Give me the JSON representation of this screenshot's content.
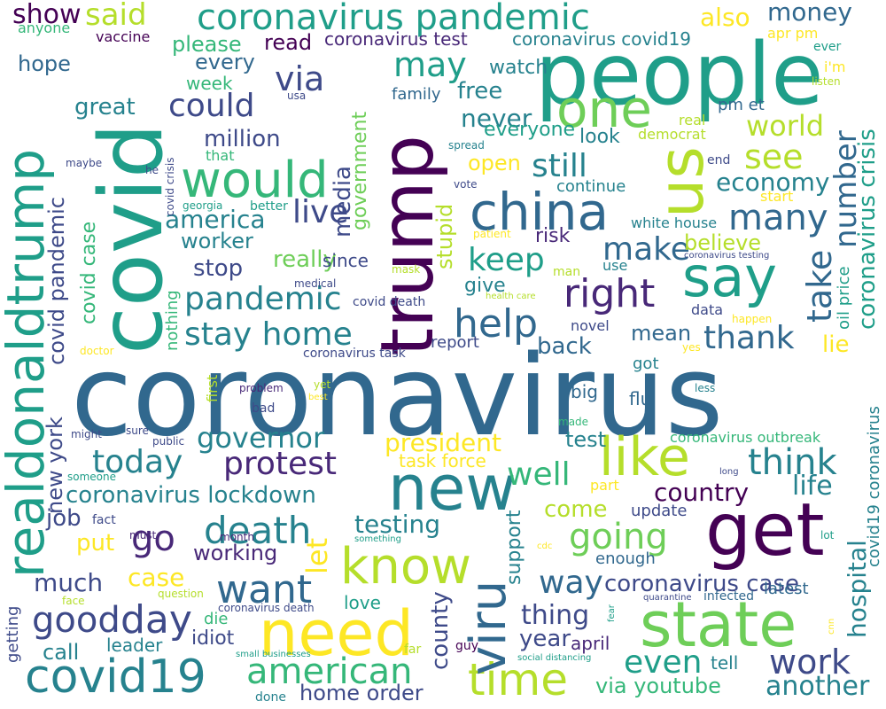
{
  "palette": [
    "#440154",
    "#482878",
    "#3e4a89",
    "#31688e",
    "#26828e",
    "#1f9e89",
    "#35b779",
    "#6ece58",
    "#b5de2b",
    "#fde725"
  ],
  "words": [
    {
      "text": "coronavirus",
      "color": "#31688e"
    },
    {
      "text": "covid",
      "color": "#1f9e89"
    },
    {
      "text": "trump",
      "color": "#440154"
    },
    {
      "text": "people",
      "color": "#1f9e89"
    },
    {
      "text": "realdonaldtrump",
      "color": "#1f9e89"
    },
    {
      "text": "new",
      "color": "#26828e"
    },
    {
      "text": "get",
      "color": "#440154"
    },
    {
      "text": "us",
      "color": "#b5de2b"
    },
    {
      "text": "need",
      "color": "#fde725"
    },
    {
      "text": "state",
      "color": "#6ece58"
    },
    {
      "text": "china",
      "color": "#31688e"
    },
    {
      "text": "say",
      "color": "#1f9e89"
    },
    {
      "text": "would",
      "color": "#35b779"
    },
    {
      "text": "covid19",
      "color": "#26828e"
    },
    {
      "text": "know",
      "color": "#b5de2b"
    },
    {
      "text": "like",
      "color": "#b5de2b"
    },
    {
      "text": "time",
      "color": "#b5de2b"
    },
    {
      "text": "viru",
      "color": "#31688e"
    },
    {
      "text": "coronavirus pandemic",
      "color": "#1f9e89"
    },
    {
      "text": "one",
      "color": "#6ece58"
    },
    {
      "text": "death",
      "color": "#26828e"
    },
    {
      "text": "right",
      "color": "#482878"
    },
    {
      "text": "want",
      "color": "#31688e"
    },
    {
      "text": "stay home",
      "color": "#26828e"
    },
    {
      "text": "american",
      "color": "#35b779"
    },
    {
      "text": "day",
      "color": "#3e4a89"
    },
    {
      "text": "help",
      "color": "#31688e"
    },
    {
      "text": "good",
      "color": "#3e4a89"
    },
    {
      "text": "many",
      "color": "#31688e"
    },
    {
      "text": "think",
      "color": "#26828e"
    },
    {
      "text": "going",
      "color": "#6ece58"
    },
    {
      "text": "make",
      "color": "#31688e"
    },
    {
      "text": "keep",
      "color": "#1f9e89"
    },
    {
      "text": "work",
      "color": "#3e4a89"
    },
    {
      "text": "pandemic",
      "color": "#26828e"
    },
    {
      "text": "protest",
      "color": "#482878"
    },
    {
      "text": "today",
      "color": "#26828e"
    },
    {
      "text": "thank",
      "color": "#31688e"
    },
    {
      "text": "way",
      "color": "#31688e"
    },
    {
      "text": "see",
      "color": "#b5de2b"
    },
    {
      "text": "could",
      "color": "#3e4a89"
    },
    {
      "text": "go",
      "color": "#482878"
    },
    {
      "text": "still",
      "color": "#26828e"
    },
    {
      "text": "well",
      "color": "#35b779"
    },
    {
      "text": "governor",
      "color": "#26828e"
    },
    {
      "text": "even",
      "color": "#1f9e89"
    },
    {
      "text": "may",
      "color": "#1f9e89"
    },
    {
      "text": "via",
      "color": "#3e4a89"
    },
    {
      "text": "take",
      "color": "#31688e"
    },
    {
      "text": "number",
      "color": "#31688e"
    },
    {
      "text": "live",
      "color": "#3e4a89"
    },
    {
      "text": "another",
      "color": "#26828e"
    },
    {
      "text": "coronavirus lockdown",
      "color": "#26828e"
    },
    {
      "text": "said",
      "color": "#b5de2b"
    },
    {
      "text": "money",
      "color": "#31688e"
    },
    {
      "text": "new york",
      "color": "#3e4a89"
    },
    {
      "text": "covid pandemic",
      "color": "#3e4a89"
    },
    {
      "text": "coronavirus crisis",
      "color": "#1f9e89"
    },
    {
      "text": "president",
      "color": "#fde725"
    },
    {
      "text": "country",
      "color": "#440154"
    },
    {
      "text": "world",
      "color": "#b5de2b"
    },
    {
      "text": "economy",
      "color": "#26828e"
    },
    {
      "text": "testing",
      "color": "#26828e"
    },
    {
      "text": "coronavirus case",
      "color": "#3e4a89"
    },
    {
      "text": "via youtube",
      "color": "#35b779"
    },
    {
      "text": "much",
      "color": "#3e4a89"
    },
    {
      "text": "thing",
      "color": "#3e4a89"
    },
    {
      "text": "hospital",
      "color": "#26828e"
    },
    {
      "text": "america",
      "color": "#26828e"
    },
    {
      "text": "life",
      "color": "#26828e"
    },
    {
      "text": "county",
      "color": "#3e4a89"
    },
    {
      "text": "home order",
      "color": "#3e4a89"
    },
    {
      "text": "media",
      "color": "#3e4a89"
    },
    {
      "text": "million",
      "color": "#3e4a89"
    },
    {
      "text": "case",
      "color": "#fde725"
    },
    {
      "text": "really",
      "color": "#6ece58"
    },
    {
      "text": "never",
      "color": "#26828e"
    },
    {
      "text": "let",
      "color": "#fde725"
    },
    {
      "text": "show",
      "color": "#440154"
    },
    {
      "text": "also",
      "color": "#fde725"
    },
    {
      "text": "believe",
      "color": "#b5de2b"
    },
    {
      "text": "stop",
      "color": "#3e4a89"
    },
    {
      "text": "come",
      "color": "#b5de2b"
    },
    {
      "text": "free",
      "color": "#26828e"
    },
    {
      "text": "government",
      "color": "#6ece58"
    },
    {
      "text": "year",
      "color": "#3e4a89"
    },
    {
      "text": "job",
      "color": "#3e4a89"
    },
    {
      "text": "put",
      "color": "#fde725"
    },
    {
      "text": "test",
      "color": "#26828e"
    },
    {
      "text": "back",
      "color": "#31688e"
    },
    {
      "text": "great",
      "color": "#26828e"
    },
    {
      "text": "open",
      "color": "#fde725"
    },
    {
      "text": "stupid",
      "color": "#b5de2b"
    },
    {
      "text": "worker",
      "color": "#26828e"
    },
    {
      "text": "call",
      "color": "#26828e"
    },
    {
      "text": "mean",
      "color": "#31688e"
    },
    {
      "text": "hope",
      "color": "#31688e"
    },
    {
      "text": "every",
      "color": "#31688e"
    },
    {
      "text": "read",
      "color": "#440154"
    },
    {
      "text": "watch",
      "color": "#26828e"
    },
    {
      "text": "please",
      "color": "#35b779"
    },
    {
      "text": "covid case",
      "color": "#35b779"
    },
    {
      "text": "working",
      "color": "#482878"
    },
    {
      "text": "risk",
      "color": "#482878"
    },
    {
      "text": "give",
      "color": "#26828e"
    },
    {
      "text": "look",
      "color": "#26828e"
    },
    {
      "text": "everyone",
      "color": "#1f9e89"
    },
    {
      "text": "support",
      "color": "#26828e"
    },
    {
      "text": "idiot",
      "color": "#3e4a89"
    },
    {
      "text": "lie",
      "color": "#fde725"
    },
    {
      "text": "coronavirus test",
      "color": "#482878"
    },
    {
      "text": "coronavirus covid19",
      "color": "#26828e"
    },
    {
      "text": "covid19 coronavirus",
      "color": "#26828e"
    },
    {
      "text": "task force",
      "color": "#fde725"
    },
    {
      "text": "since",
      "color": "#3e4a89"
    },
    {
      "text": "week",
      "color": "#35b779"
    },
    {
      "text": "continue",
      "color": "#26828e"
    },
    {
      "text": "april",
      "color": "#482878"
    },
    {
      "text": "family",
      "color": "#31688e"
    },
    {
      "text": "tell",
      "color": "#26828e"
    },
    {
      "text": "leader",
      "color": "#26828e"
    },
    {
      "text": "love",
      "color": "#1f9e89"
    },
    {
      "text": "update",
      "color": "#3e4a89"
    },
    {
      "text": "enough",
      "color": "#31688e"
    },
    {
      "text": "latest",
      "color": "#31688e"
    },
    {
      "text": "oil price",
      "color": "#1f9e89"
    },
    {
      "text": "vaccine",
      "color": "#440154"
    },
    {
      "text": "nothing",
      "color": "#35b779"
    },
    {
      "text": "getting",
      "color": "#3e4a89"
    },
    {
      "text": "die",
      "color": "#35b779"
    },
    {
      "text": "big",
      "color": "#31688e"
    },
    {
      "text": "flu",
      "color": "#31688e"
    },
    {
      "text": "report",
      "color": "#3e4a89"
    },
    {
      "text": "data",
      "color": "#3e4a89"
    },
    {
      "text": "got",
      "color": "#26828e"
    },
    {
      "text": "pm et",
      "color": "#31688e"
    },
    {
      "text": "democrat",
      "color": "#b5de2b"
    },
    {
      "text": "real",
      "color": "#b5de2b"
    },
    {
      "text": "apr pm",
      "color": "#fde725"
    },
    {
      "text": "i'm",
      "color": "#fde725"
    },
    {
      "text": "coronavirus outbreak",
      "color": "#35b779"
    },
    {
      "text": "white house",
      "color": "#26828e"
    },
    {
      "text": "use",
      "color": "#26828e"
    },
    {
      "text": "novel",
      "color": "#3e4a89"
    },
    {
      "text": "first",
      "color": "#b5de2b"
    },
    {
      "text": "part",
      "color": "#fde725"
    },
    {
      "text": "start",
      "color": "#fde725"
    },
    {
      "text": "end",
      "color": "#3e4a89"
    },
    {
      "text": "ever",
      "color": "#1f9e89"
    },
    {
      "text": "anyone",
      "color": "#35b779"
    },
    {
      "text": "that",
      "color": "#35b779"
    },
    {
      "text": "usa",
      "color": "#3e4a89"
    },
    {
      "text": "maybe",
      "color": "#3e4a89"
    },
    {
      "text": "he",
      "color": "#3e4a89"
    },
    {
      "text": "covid crisis",
      "color": "#3e4a89"
    },
    {
      "text": "georgia",
      "color": "#1f9e89"
    },
    {
      "text": "better",
      "color": "#1f9e89"
    },
    {
      "text": "spread",
      "color": "#26828e"
    },
    {
      "text": "vote",
      "color": "#3e4a89"
    },
    {
      "text": "patient",
      "color": "#fde725"
    },
    {
      "text": "mask",
      "color": "#b5de2b"
    },
    {
      "text": "man",
      "color": "#b5de2b"
    },
    {
      "text": "medical",
      "color": "#3e4a89"
    },
    {
      "text": "health care",
      "color": "#b5de2b"
    },
    {
      "text": "covid death",
      "color": "#3e4a89"
    },
    {
      "text": "coronavirus task",
      "color": "#3e4a89"
    },
    {
      "text": "doctor",
      "color": "#fde725"
    },
    {
      "text": "problem",
      "color": "#482878"
    },
    {
      "text": "yet",
      "color": "#b5de2b"
    },
    {
      "text": "best",
      "color": "#fde725"
    },
    {
      "text": "bad",
      "color": "#3e4a89"
    },
    {
      "text": "might",
      "color": "#3e4a89"
    },
    {
      "text": "sure",
      "color": "#3e4a89"
    },
    {
      "text": "public",
      "color": "#3e4a89"
    },
    {
      "text": "made",
      "color": "#35b779"
    },
    {
      "text": "less",
      "color": "#26828e"
    },
    {
      "text": "yes",
      "color": "#fde725"
    },
    {
      "text": "happen",
      "color": "#fde725"
    },
    {
      "text": "coronavirus testing",
      "color": "#3e4a89"
    },
    {
      "text": "listen",
      "color": "#b5de2b"
    },
    {
      "text": "someone",
      "color": "#1f9e89"
    },
    {
      "text": "long",
      "color": "#3e4a89"
    },
    {
      "text": "fact",
      "color": "#3e4a89"
    },
    {
      "text": "must",
      "color": "#482878"
    },
    {
      "text": "month",
      "color": "#482878"
    },
    {
      "text": "something",
      "color": "#1f9e89"
    },
    {
      "text": "cdc",
      "color": "#fde725"
    },
    {
      "text": "lot",
      "color": "#1f9e89"
    },
    {
      "text": "question",
      "color": "#b5de2b"
    },
    {
      "text": "face",
      "color": "#b5de2b"
    },
    {
      "text": "coronavirus death",
      "color": "#3e4a89"
    },
    {
      "text": "quarantine",
      "color": "#3e4a89"
    },
    {
      "text": "infected",
      "color": "#31688e"
    },
    {
      "text": "fear",
      "color": "#1f9e89"
    },
    {
      "text": "cnn",
      "color": "#fde725"
    },
    {
      "text": "small businesses",
      "color": "#1f9e89"
    },
    {
      "text": "far",
      "color": "#b5de2b"
    },
    {
      "text": "guy",
      "color": "#440154"
    },
    {
      "text": "social distancing",
      "color": "#1f9e89"
    },
    {
      "text": "done",
      "color": "#26828e"
    }
  ]
}
